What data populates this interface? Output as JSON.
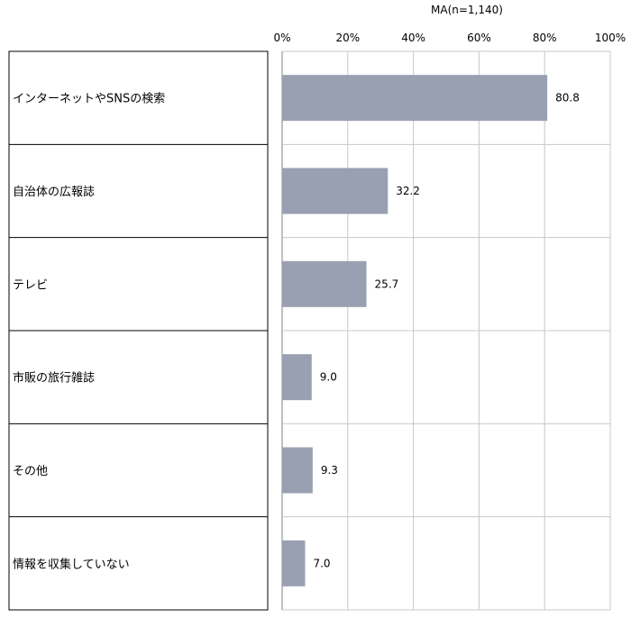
{
  "chart_data": {
    "type": "bar",
    "orientation": "horizontal",
    "note": "MA(n=1,140)",
    "categories": [
      "インターネットやSNSの検索",
      "自治体の広報誌",
      "テレビ",
      "市販の旅行雑誌",
      "その他",
      "情報を収集していない"
    ],
    "values": [
      80.8,
      32.2,
      25.7,
      9.0,
      9.3,
      7.0
    ],
    "value_labels": [
      "80.8",
      "32.2",
      "25.7",
      "9.0",
      "9.3",
      "7.0"
    ],
    "xlim": [
      0,
      100
    ],
    "ticks": [
      0,
      20,
      40,
      60,
      80,
      100
    ],
    "tick_labels": [
      "0%",
      "20%",
      "40%",
      "60%",
      "80%",
      "100%"
    ],
    "grid": true,
    "colors": {
      "bar": "#98a0b1",
      "grid": "#c8c8c8",
      "frame": "#000000"
    }
  }
}
